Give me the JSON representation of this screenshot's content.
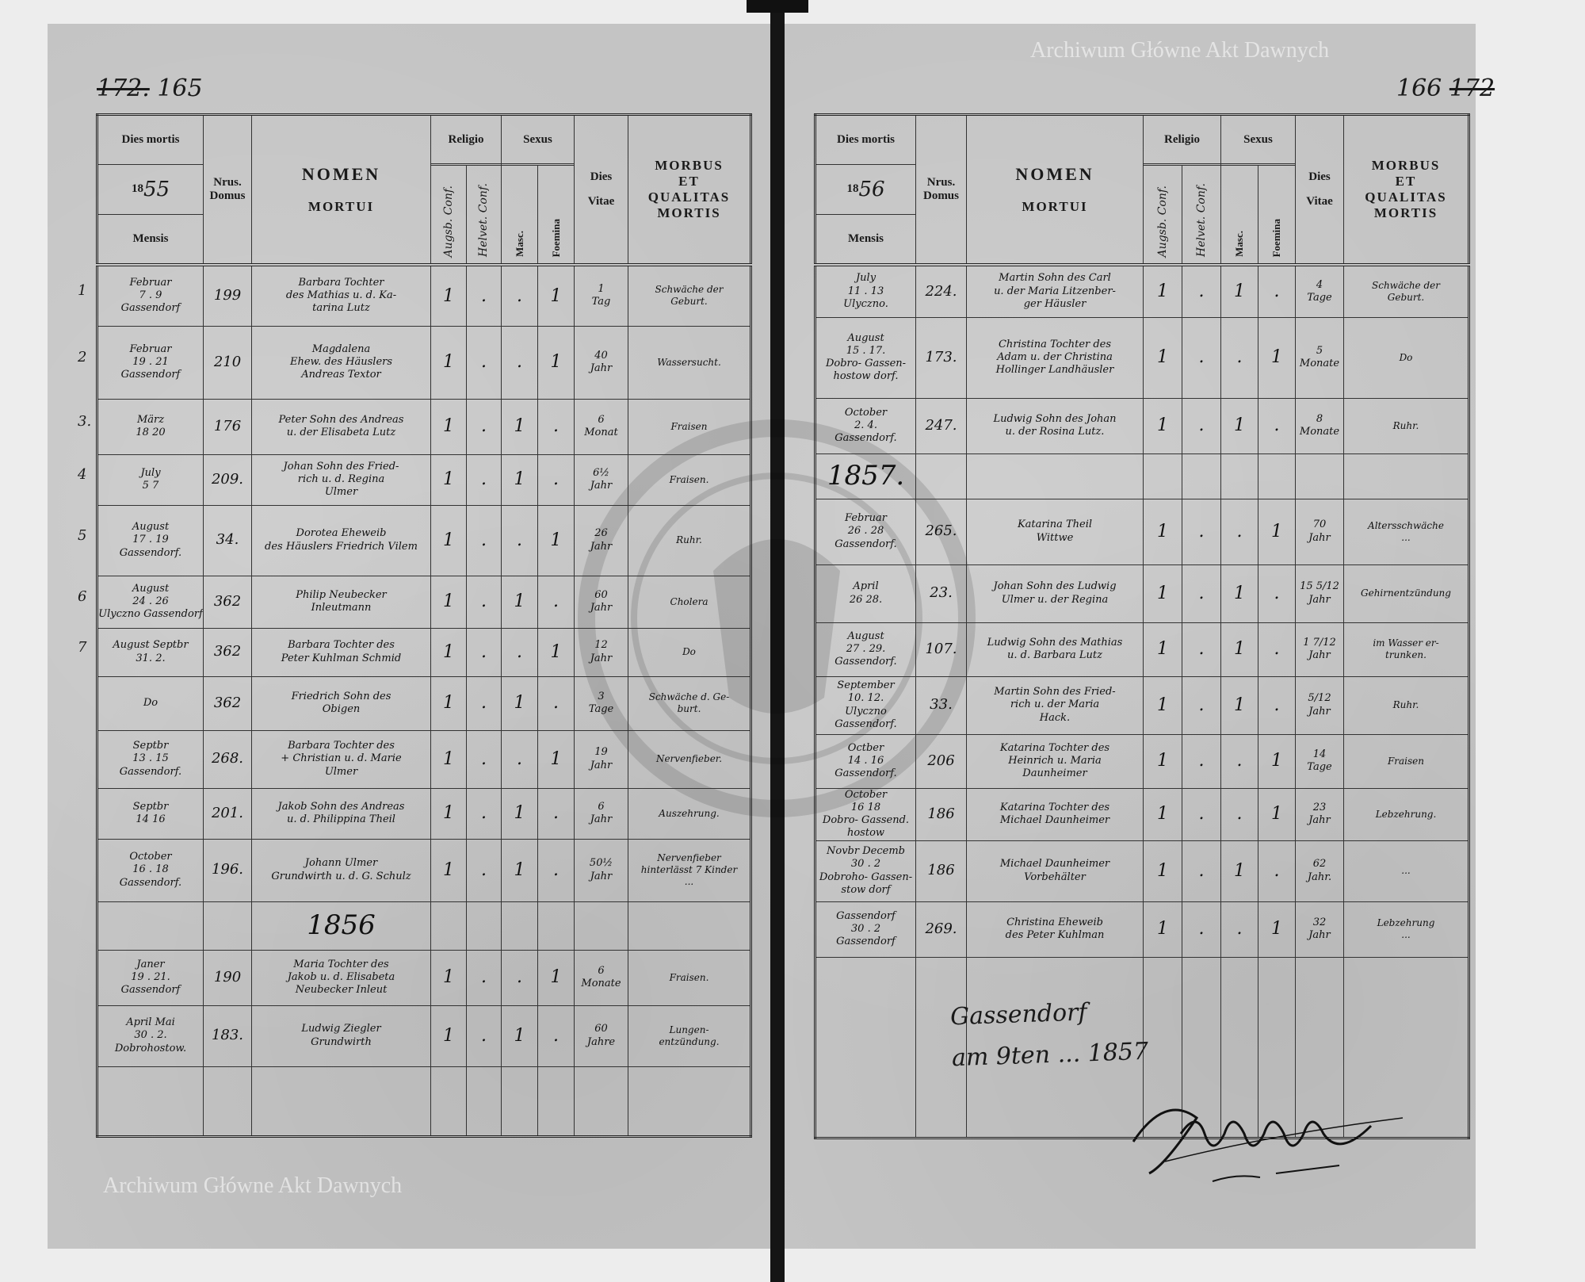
{
  "page_numbers": {
    "left_struck": "172.",
    "left": "165",
    "right": "166",
    "right_struck": "172"
  },
  "header": {
    "dies_mortis": "Dies mortis",
    "year_prefix": "18",
    "left_year_suffix": "55",
    "right_year_suffix": "56",
    "mensis": "Mensis",
    "nrus": "Nrus.",
    "domus": "Domus",
    "nomen": "NOMEN",
    "mortui": "MORTUI",
    "religio": "Religio",
    "augsb": "Augsb. Conf.",
    "helvet": "Helvet. Conf.",
    "sexus": "Sexus",
    "masc": "Masc.",
    "foemina": "Foemina",
    "dies": "Dies",
    "vitae": "Vitae",
    "morbus": "MORBUS",
    "et": "ET",
    "qualitas": "QUALITAS",
    "mortis": "MORTIS"
  },
  "left": {
    "row_numbers": [
      "1",
      "2",
      "3.",
      "4",
      "5",
      "6",
      "7"
    ],
    "rows": [
      {
        "mensis": "Februar\n7 . 9\nGassendorf",
        "domus": "199",
        "nomen": "Barbara Tochter\ndes Mathias u. d. Ka-\ntarina Lutz",
        "augsb": "1",
        "helvet": ".",
        "masc": ".",
        "foem": "1",
        "vitae": "1\nTag",
        "morbus": "Schwäche der\nGeburt."
      },
      {
        "mensis": "Februar\n19 . 21\nGassendorf",
        "domus": "210",
        "nomen": "Magdalena\nEhew. des Häuslers\nAndreas Textor",
        "augsb": "1",
        "helvet": ".",
        "masc": ".",
        "foem": "1",
        "vitae": "40\nJahr",
        "morbus": "Wassersucht."
      },
      {
        "mensis": "März\n18 20",
        "domus": "176",
        "nomen": "Peter Sohn des Andreas\nu. der Elisabeta Lutz",
        "augsb": "1",
        "helvet": ".",
        "masc": "1",
        "foem": ".",
        "vitae": "6\nMonat",
        "morbus": "Fraisen"
      },
      {
        "mensis": "July\n5 7",
        "domus": "209.",
        "nomen": "Johan Sohn des Fried-\nrich u. d. Regina\nUlmer",
        "augsb": "1",
        "helvet": ".",
        "masc": "1",
        "foem": ".",
        "vitae": "6½\nJahr",
        "morbus": "Fraisen."
      },
      {
        "mensis": "August\n17 . 19\nGassendorf.",
        "domus": "34.",
        "nomen": "Dorotea Eheweib\ndes Häuslers Friedrich Vilem",
        "augsb": "1",
        "helvet": ".",
        "masc": ".",
        "foem": "1",
        "vitae": "26\nJahr",
        "morbus": "Ruhr."
      },
      {
        "mensis": "August\n24 . 26\nUlyczno Gassendorf",
        "domus": "362",
        "nomen": "Philip Neubecker\nInleutmann",
        "augsb": "1",
        "helvet": ".",
        "masc": "1",
        "foem": ".",
        "vitae": "60\nJahr",
        "morbus": "Cholera"
      },
      {
        "mensis": "August Septbr\n31. 2.",
        "domus": "362",
        "nomen": "Barbara Tochter des\nPeter Kuhlman Schmid",
        "augsb": "1",
        "helvet": ".",
        "masc": ".",
        "foem": "1",
        "vitae": "12\nJahr",
        "morbus": "Do"
      },
      {
        "mensis": "Do",
        "domus": "362",
        "nomen": "Friedrich Sohn des\nObigen",
        "augsb": "1",
        "helvet": ".",
        "masc": "1",
        "foem": ".",
        "vitae": "3\nTage",
        "morbus": "Schwäche d. Ge-\nburt."
      },
      {
        "mensis": "Septbr\n13 . 15\nGassendorf.",
        "domus": "268.",
        "nomen": "Barbara Tochter des\n+ Christian u. d. Marie\nUlmer",
        "augsb": "1",
        "helvet": ".",
        "masc": ".",
        "foem": "1",
        "vitae": "19\nJahr",
        "morbus": "Nervenfieber."
      },
      {
        "mensis": "Septbr\n14 16",
        "domus": "201.",
        "nomen": "Jakob Sohn des Andreas\nu. d. Philippina Theil",
        "augsb": "1",
        "helvet": ".",
        "masc": "1",
        "foem": ".",
        "vitae": "6\nJahr",
        "morbus": "Auszehrung."
      },
      {
        "mensis": "October\n16 . 18\nGassendorf.",
        "domus": "196.",
        "nomen": "Johann Ulmer\nGrundwirth u. d. G. Schulz",
        "augsb": "1",
        "helvet": ".",
        "masc": "1",
        "foem": ".",
        "vitae": "50½\nJahr",
        "morbus": "Nervenfieber\nhinterlässt 7 Kinder\n..."
      },
      {
        "year": "1856"
      },
      {
        "mensis": "Janer\n19 . 21.\nGassendorf",
        "domus": "190",
        "nomen": "Maria Tochter des\nJakob u. d. Elisabeta\nNeubecker Inleut",
        "augsb": "1",
        "helvet": ".",
        "masc": ".",
        "foem": "1",
        "vitae": "6\nMonate",
        "morbus": "Fraisen."
      },
      {
        "mensis": "April Mai\n30 . 2.\nDobrohostow.",
        "domus": "183.",
        "nomen": "Ludwig Ziegler\nGrundwirth",
        "augsb": "1",
        "helvet": ".",
        "masc": "1",
        "foem": ".",
        "vitae": "60\nJahre",
        "morbus": "Lungen-\nentzündung."
      },
      {
        "empty": true
      }
    ]
  },
  "right": {
    "rows": [
      {
        "mensis": "July\n11 . 13\nUlyczno.",
        "domus": "224.",
        "nomen": "Martin Sohn des Carl\nu. der Maria Litzenber-\nger Häusler",
        "augsb": "1",
        "helvet": ".",
        "masc": "1",
        "foem": ".",
        "vitae": "4\nTage",
        "morbus": "Schwäche der\nGeburt."
      },
      {
        "mensis": "August\n15 . 17.\nDobro- Gassen-\nhostow dorf.",
        "domus": "173.",
        "nomen": "Christina Tochter des\nAdam u. der Christina\nHollinger Landhäusler",
        "augsb": "1",
        "helvet": ".",
        "masc": ".",
        "foem": "1",
        "vitae": "5\nMonate",
        "morbus": "Do"
      },
      {
        "mensis": "October\n2. 4.\nGassendorf.",
        "domus": "247.",
        "nomen": "Ludwig Sohn des Johan\nu. der Rosina Lutz.",
        "augsb": "1",
        "helvet": ".",
        "masc": "1",
        "foem": ".",
        "vitae": "8\nMonate",
        "morbus": "Ruhr."
      },
      {
        "year": "1857."
      },
      {
        "mensis": "Februar\n26 . 28\nGassendorf.",
        "domus": "265.",
        "nomen": "Katarina Theil\nWittwe",
        "augsb": "1",
        "helvet": ".",
        "masc": ".",
        "foem": "1",
        "vitae": "70\nJahr",
        "morbus": "Altersschwäche\n..."
      },
      {
        "mensis": "April\n26 28.",
        "domus": "23.",
        "nomen": "Johan Sohn des Ludwig\nUlmer u. der Regina",
        "augsb": "1",
        "helvet": ".",
        "masc": "1",
        "foem": ".",
        "vitae": "15 5/12\nJahr",
        "morbus": "Gehirnentzündung"
      },
      {
        "mensis": "August\n27 . 29.\nGassendorf.",
        "domus": "107.",
        "nomen": "Ludwig Sohn des Mathias\nu. d. Barbara Lutz",
        "augsb": "1",
        "helvet": ".",
        "masc": "1",
        "foem": ".",
        "vitae": "1 7/12\nJahr",
        "morbus": "im Wasser er-\ntrunken."
      },
      {
        "mensis": "September\n10. 12.\nUlyczno Gassendorf.",
        "domus": "33.",
        "nomen": "Martin Sohn des Fried-\nrich u. der Maria\nHack.",
        "augsb": "1",
        "helvet": ".",
        "masc": "1",
        "foem": ".",
        "vitae": "5/12\nJahr",
        "morbus": "Ruhr."
      },
      {
        "mensis": "Octber\n14 . 16\nGassendorf.",
        "domus": "206",
        "nomen": "Katarina Tochter des\nHeinrich u. Maria\nDaunheimer",
        "augsb": "1",
        "helvet": ".",
        "masc": ".",
        "foem": "1",
        "vitae": "14\nTage",
        "morbus": "Fraisen"
      },
      {
        "mensis": "October\n16 18\nDobro- Gassend.\nhostow",
        "domus": "186",
        "nomen": "Katarina Tochter des\nMichael Daunheimer",
        "augsb": "1",
        "helvet": ".",
        "masc": ".",
        "foem": "1",
        "vitae": "23\nJahr",
        "morbus": "Lebzehrung."
      },
      {
        "mensis": "Novbr Decemb\n30 . 2\nDobroho- Gassen-\nstow dorf",
        "domus": "186",
        "nomen": "Michael Daunheimer\nVorbehälter",
        "augsb": "1",
        "helvet": ".",
        "masc": "1",
        "foem": ".",
        "vitae": "62\nJahr.",
        "morbus": "..."
      },
      {
        "mensis": "Gassendorf\n30 . 2\nGassendorf",
        "domus": "269.",
        "nomen": "Christina Eheweib\ndes Peter Kuhlman",
        "augsb": "1",
        "helvet": ".",
        "masc": ".",
        "foem": "1",
        "vitae": "32\nJahr",
        "morbus": "Lebzehrung\n..."
      },
      {
        "empty": true
      }
    ]
  },
  "closing": "Gassendorf\nam 9ten ... 1857",
  "signature": "Daunheimer",
  "watermark": "Archiwum Główne Akt Dawnych"
}
